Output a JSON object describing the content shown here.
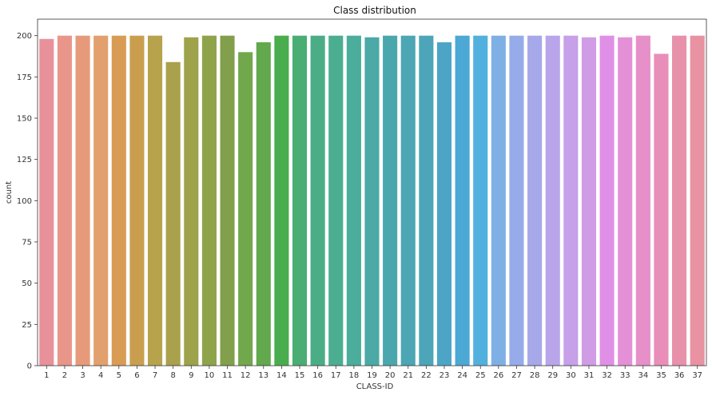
{
  "chart_data": {
    "type": "bar",
    "title": "Class distribution",
    "xlabel": "CLASS-ID",
    "ylabel": "count",
    "ylim": [
      0,
      210
    ],
    "yticks": [
      0,
      25,
      50,
      75,
      100,
      125,
      150,
      175,
      200
    ],
    "grid": false,
    "categories": [
      "1",
      "2",
      "3",
      "4",
      "5",
      "6",
      "7",
      "8",
      "9",
      "10",
      "11",
      "12",
      "13",
      "14",
      "15",
      "16",
      "17",
      "18",
      "19",
      "20",
      "21",
      "22",
      "23",
      "24",
      "25",
      "26",
      "27",
      "28",
      "29",
      "30",
      "31",
      "32",
      "33",
      "34",
      "35",
      "36",
      "37"
    ],
    "values": [
      198,
      200,
      200,
      200,
      200,
      200,
      200,
      184,
      199,
      200,
      200,
      190,
      196,
      200,
      200,
      200,
      200,
      200,
      199,
      200,
      200,
      200,
      196,
      200,
      200,
      200,
      200,
      200,
      200,
      200,
      199,
      200,
      199,
      200,
      189,
      200,
      200
    ],
    "colors": [
      "#e8919a",
      "#e9968a",
      "#e79a7a",
      "#e2a06e",
      "#d89c55",
      "#c99f4f",
      "#b6a34b",
      "#a9a14b",
      "#9da24b",
      "#8fa34b",
      "#829f4b",
      "#71a84b",
      "#62a84c",
      "#49ad4e",
      "#4aad74",
      "#4aad86",
      "#4bae90",
      "#4bad9b",
      "#4ba9a6",
      "#4ba7ae",
      "#4ca6b3",
      "#4ca5b8",
      "#4ca5c6",
      "#4ca8d4",
      "#51b0dd",
      "#7eb0e6",
      "#96abe9",
      "#a7a8ea",
      "#b8a5ea",
      "#c6a0e8",
      "#d09ce6",
      "#e08fe6",
      "#e490d7",
      "#e68fc8",
      "#e88eb8",
      "#e891ab",
      "#e892a2"
    ]
  }
}
